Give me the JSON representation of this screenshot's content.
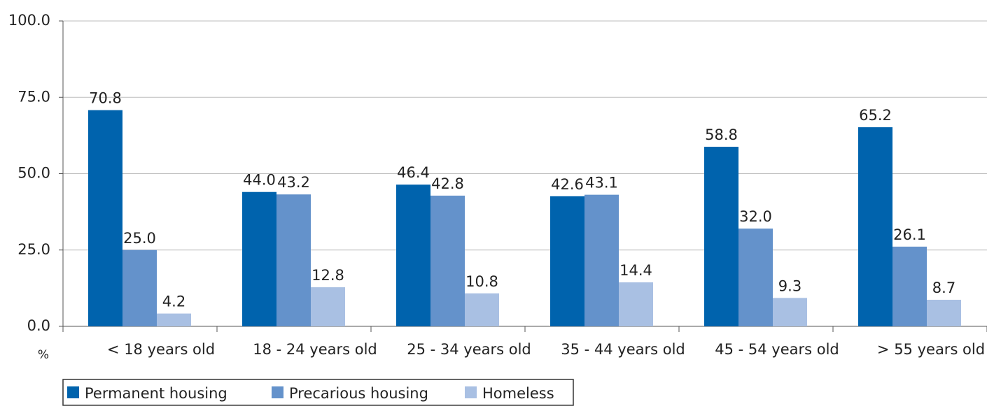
{
  "chart_data": {
    "type": "bar",
    "categories": [
      "< 18 years old",
      "18 - 24 years old",
      "25 - 34 years old",
      "35 - 44 years old",
      "45 - 54 years old",
      "> 55 years old"
    ],
    "series": [
      {
        "name": "Permanent housing",
        "color": "#0063ad",
        "values": [
          70.8,
          44.0,
          46.4,
          42.6,
          58.8,
          65.2
        ],
        "value_labels": [
          "70.8",
          "44.0",
          "46.4",
          "42.6",
          "58.8",
          "65.2"
        ]
      },
      {
        "name": "Precarious housing",
        "color": "#6492cb",
        "values": [
          25.0,
          43.2,
          42.8,
          43.1,
          32.0,
          26.1
        ],
        "value_labels": [
          "25.0",
          "43.2",
          "42.8",
          "43.1",
          "32.0",
          "26.1"
        ]
      },
      {
        "name": "Homeless",
        "color": "#a9c0e3",
        "values": [
          4.2,
          12.8,
          10.8,
          14.4,
          9.3,
          8.7
        ],
        "value_labels": [
          "4.2",
          "12.8",
          "10.8",
          "14.4",
          "9.3",
          "8.7"
        ]
      }
    ],
    "y_label": "%",
    "ylim": [
      0,
      100
    ],
    "yticks": [
      {
        "value": 0,
        "label": "0.0"
      },
      {
        "value": 25,
        "label": "25.0"
      },
      {
        "value": 50,
        "label": "50.0"
      },
      {
        "value": 75,
        "label": "75.0"
      },
      {
        "value": 100,
        "label": "100.0"
      }
    ],
    "grid": true,
    "legend": "bottom-left"
  }
}
